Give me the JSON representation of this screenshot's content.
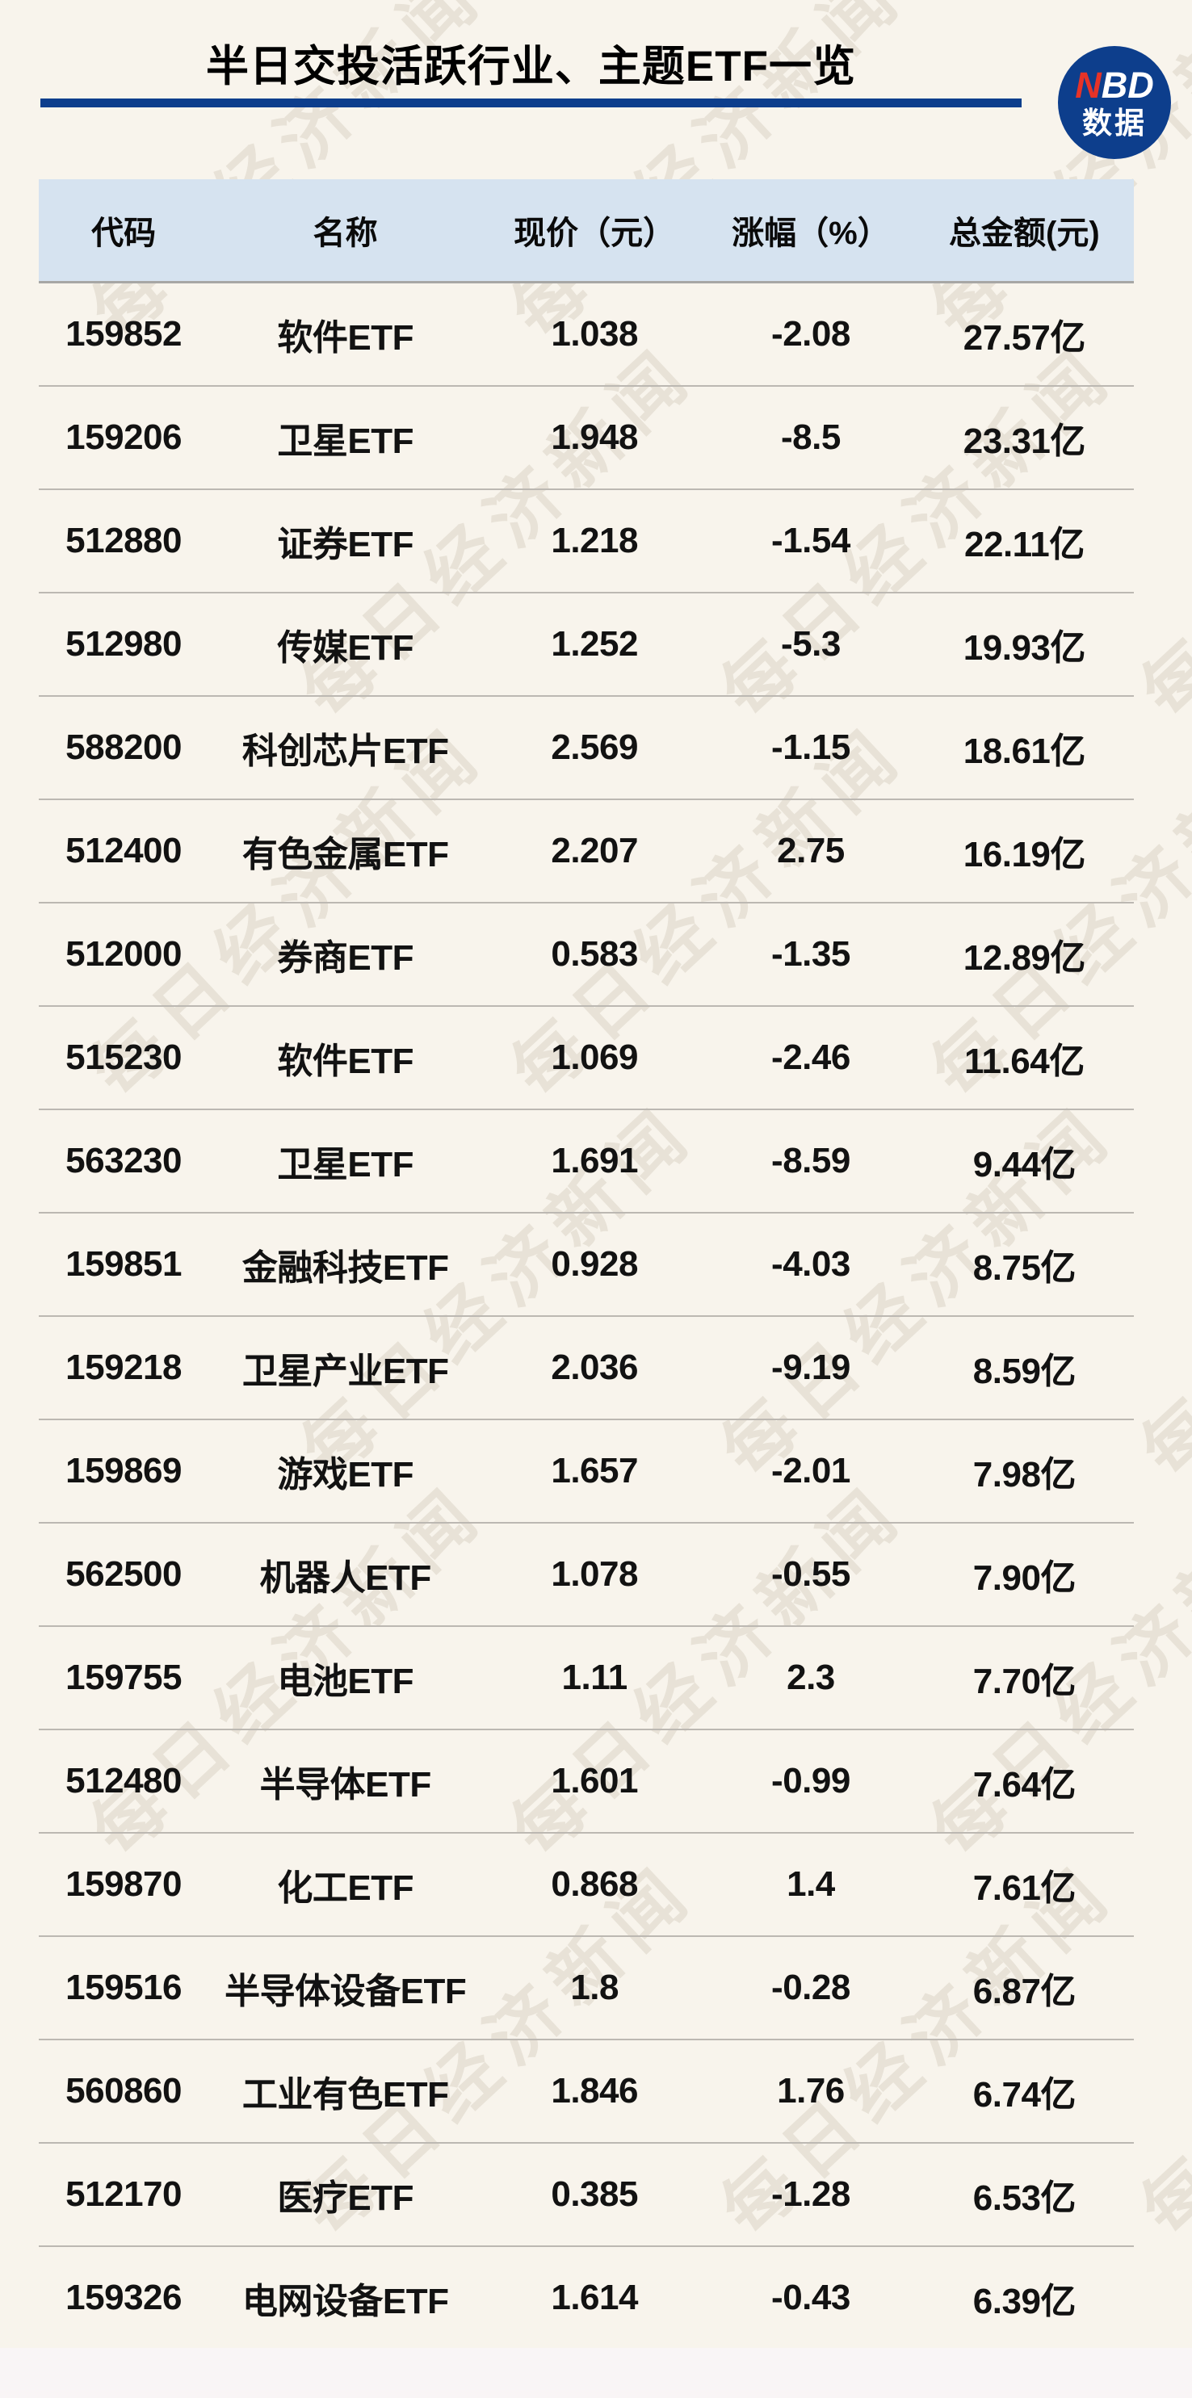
{
  "title": "半日交投活跃行业、主题ETF一览",
  "logo": {
    "n": "N",
    "bd": "BD",
    "sub": "数据"
  },
  "watermark_text": "每日经济新闻",
  "chart_data": {
    "type": "table",
    "title": "半日交投活跃行业、主题ETF一览",
    "columns": [
      "代码",
      "名称",
      "现价（元）",
      "涨幅（%）",
      "总金额(元)"
    ],
    "rows": [
      [
        "159852",
        "软件ETF",
        "1.038",
        "-2.08",
        "27.57亿"
      ],
      [
        "159206",
        "卫星ETF",
        "1.948",
        "-8.5",
        "23.31亿"
      ],
      [
        "512880",
        "证券ETF",
        "1.218",
        "-1.54",
        "22.11亿"
      ],
      [
        "512980",
        "传媒ETF",
        "1.252",
        "-5.3",
        "19.93亿"
      ],
      [
        "588200",
        "科创芯片ETF",
        "2.569",
        "-1.15",
        "18.61亿"
      ],
      [
        "512400",
        "有色金属ETF",
        "2.207",
        "2.75",
        "16.19亿"
      ],
      [
        "512000",
        "券商ETF",
        "0.583",
        "-1.35",
        "12.89亿"
      ],
      [
        "515230",
        "软件ETF",
        "1.069",
        "-2.46",
        "11.64亿"
      ],
      [
        "563230",
        "卫星ETF",
        "1.691",
        "-8.59",
        "9.44亿"
      ],
      [
        "159851",
        "金融科技ETF",
        "0.928",
        "-4.03",
        "8.75亿"
      ],
      [
        "159218",
        "卫星产业ETF",
        "2.036",
        "-9.19",
        "8.59亿"
      ],
      [
        "159869",
        "游戏ETF",
        "1.657",
        "-2.01",
        "7.98亿"
      ],
      [
        "562500",
        "机器人ETF",
        "1.078",
        "-0.55",
        "7.90亿"
      ],
      [
        "159755",
        "电池ETF",
        "1.11",
        "2.3",
        "7.70亿"
      ],
      [
        "512480",
        "半导体ETF",
        "1.601",
        "-0.99",
        "7.64亿"
      ],
      [
        "159870",
        "化工ETF",
        "0.868",
        "1.4",
        "7.61亿"
      ],
      [
        "159516",
        "半导体设备ETF",
        "1.8",
        "-0.28",
        "6.87亿"
      ],
      [
        "560860",
        "工业有色ETF",
        "1.846",
        "1.76",
        "6.74亿"
      ],
      [
        "512170",
        "医疗ETF",
        "0.385",
        "-1.28",
        "6.53亿"
      ],
      [
        "159326",
        "电网设备ETF",
        "1.614",
        "-0.43",
        "6.39亿"
      ]
    ]
  },
  "colors": {
    "accent_navy": "#0D3E8C",
    "logo_red": "#E63328",
    "header_bg": "#D6E3F0",
    "page_bg": "#F8F4EC",
    "footer_bg": "#F9F5F6"
  }
}
